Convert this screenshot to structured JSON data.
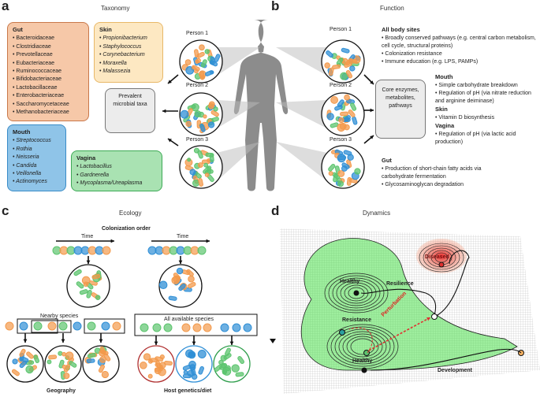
{
  "panels": {
    "a": {
      "label": "a",
      "title": "Taxonomy",
      "gut": {
        "heading": "Gut",
        "items": [
          "Bacteroidaceae",
          "Clostridiaceae",
          "Prevotellaceae",
          "Eubacteriaceae",
          "Ruminococcaceae",
          "Bifidobacteriaceae",
          "Lactobacillaceae",
          "Enterobacteriaceae",
          "Saccharomycetaceae",
          "Methanobacteriaceae"
        ]
      },
      "skin": {
        "heading": "Skin",
        "items": [
          "Propionibacterium",
          "Staphylococcus",
          "Corynebacterium",
          "Moraxella",
          "Malassezia"
        ]
      },
      "mouth": {
        "heading": "Mouth",
        "items": [
          "Streptococcus",
          "Rothia",
          "Neisseria",
          "Candida",
          "Veillonella",
          "Actinomyces"
        ]
      },
      "vagina": {
        "heading": "Vagina",
        "items": [
          "Lactobacillus",
          "Gardnerella",
          "Mycoplasma/Ureaplasma"
        ]
      },
      "prevalent": "Prevalent microbial taxa",
      "persons": [
        "Person 1",
        "Person 2",
        "Person 3"
      ]
    },
    "b": {
      "label": "b",
      "title": "Function",
      "persons": [
        "Person 1",
        "Person 2",
        "Person 3"
      ],
      "core": "Core enzymes, metabolites, pathways",
      "all_sites": {
        "heading": "All body sites",
        "items": [
          "Broadly conserved pathways (e.g. central carbon metabolism, cell cycle, structural proteins)",
          "Colonization resistance",
          "Immune education (e.g. LPS, PAMPs)"
        ]
      },
      "mouth": {
        "heading": "Mouth",
        "items": [
          "Simple carbohydrate breakdown",
          "Regulation of pH (via nitrate reduction and arginine deiminase)"
        ]
      },
      "skin": {
        "heading": "Skin",
        "items": [
          "Vitamin D biosynthesis"
        ]
      },
      "vagina": {
        "heading": "Vagina",
        "items": [
          "Regulation of pH (via lactic acid production)"
        ]
      },
      "gut": {
        "heading": "Gut",
        "items": [
          "Production of short-chain fatty acids via carbohydrate fermentation",
          "Glycosaminoglycan degradation"
        ]
      }
    },
    "c": {
      "label": "c",
      "title": "Ecology",
      "colonization": "Colonization order",
      "time": "Time",
      "nearby": "Nearby species",
      "all_available": "All available species",
      "geography": "Geography",
      "host": "Host genetics/diet"
    },
    "d": {
      "label": "d",
      "title": "Dynamics",
      "diseased": "Diseased",
      "healthy_top": "Healthy",
      "resilience": "Resilience",
      "resistance": "Resistance",
      "perturbation": "Perturbation",
      "healthy_bottom": "Healthy",
      "development": "Development"
    }
  },
  "colors": {
    "orange": "#f39a4c",
    "green": "#5cc46e",
    "blue": "#2f8fd6",
    "red": "#e03030",
    "landscape_green": "#4ee04e"
  }
}
